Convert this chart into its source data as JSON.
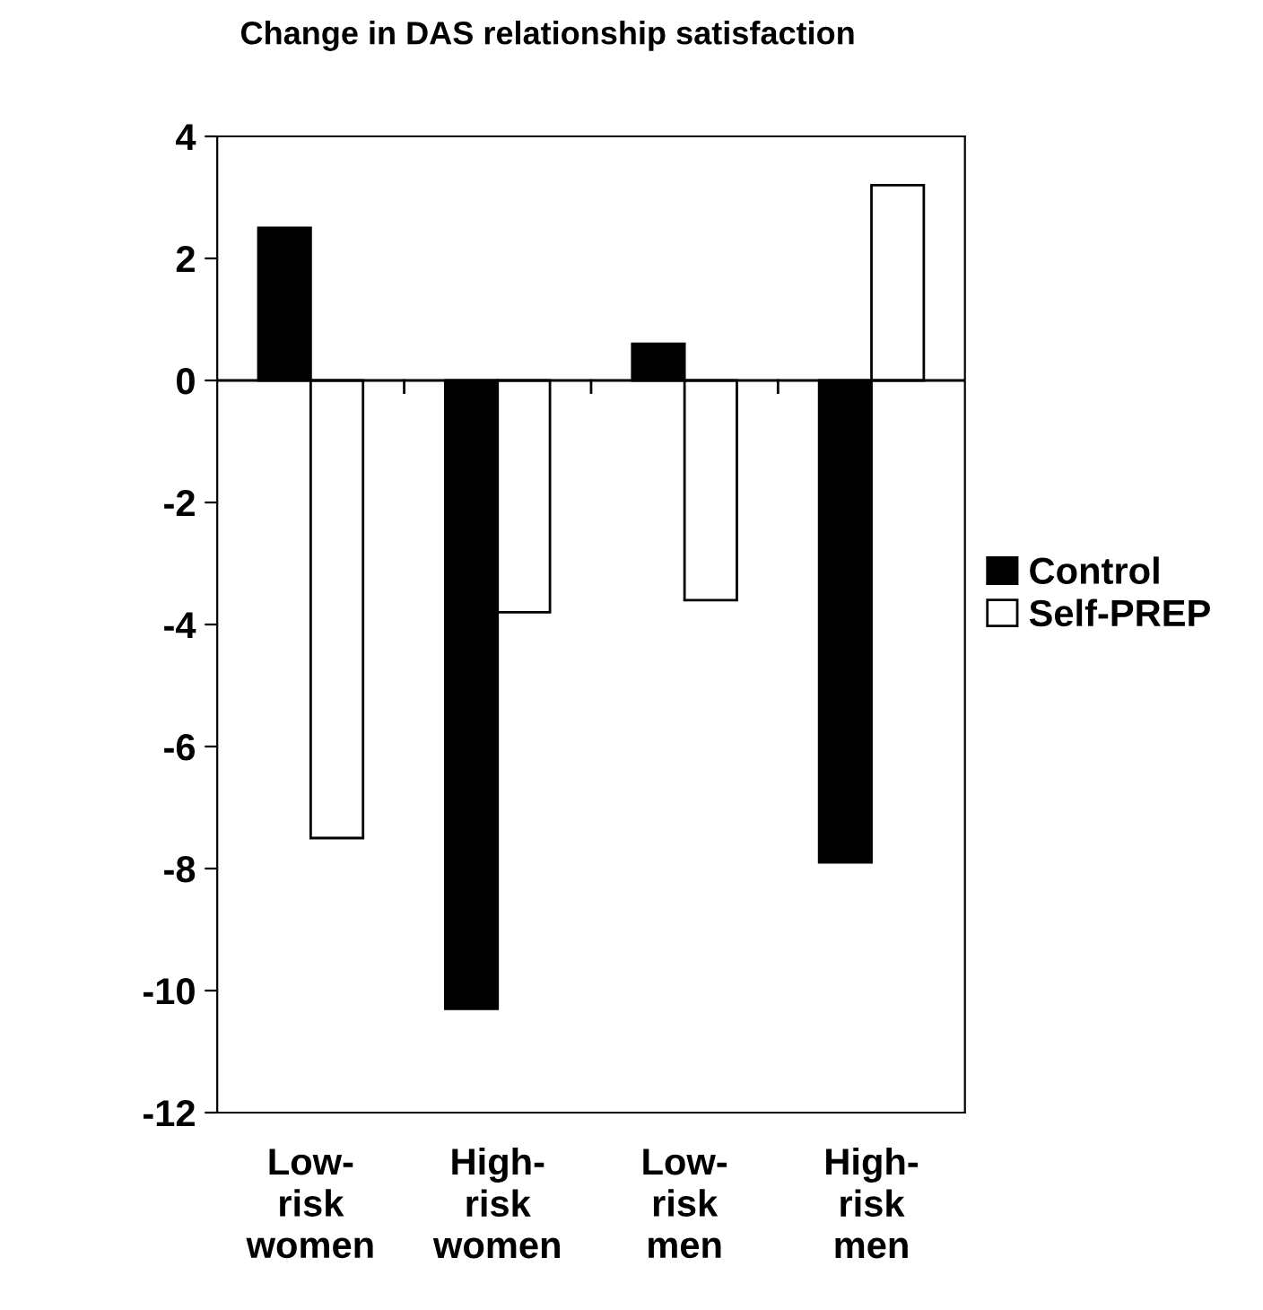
{
  "chart_data": {
    "type": "bar",
    "title": "Change in DAS relationship satisfaction",
    "categories": [
      "Low-\nrisk\nwomen",
      "High-\nrisk\nwomen",
      "Low-\nrisk\nmen",
      "High-\nrisk\nmen"
    ],
    "series": [
      {
        "name": "Control",
        "color": "#000000",
        "values": [
          2.5,
          -10.3,
          0.6,
          -7.9
        ]
      },
      {
        "name": "Self-PREP",
        "color": "#ffffff",
        "values": [
          -7.5,
          -3.8,
          -3.6,
          3.2
        ]
      }
    ],
    "ref_lines": [
      {
        "axis": "y",
        "value": 0
      }
    ],
    "ylim": [
      -12,
      4
    ],
    "yticks": [
      -12,
      -10,
      -8,
      -6,
      -4,
      -2,
      0,
      2,
      4
    ],
    "grid": false,
    "legend": "right"
  }
}
